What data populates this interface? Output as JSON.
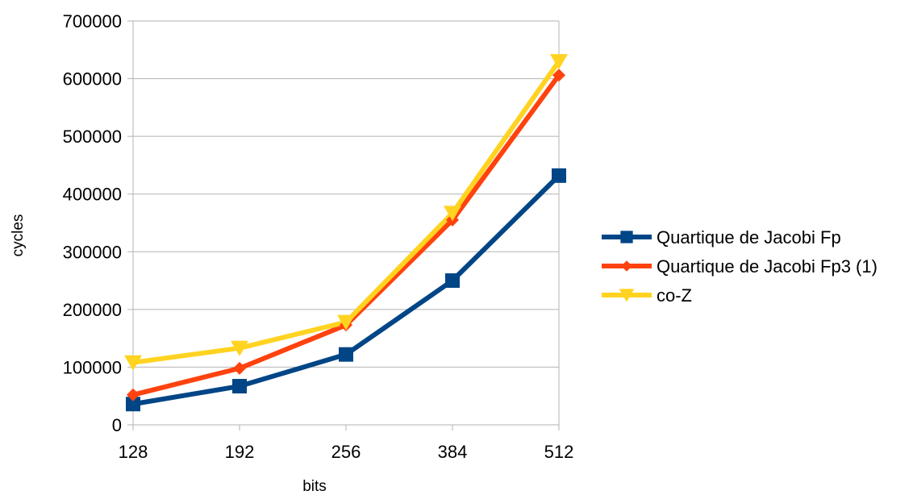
{
  "chart_data": {
    "type": "line",
    "title": "",
    "xlabel": "bits",
    "ylabel": "cycles",
    "categories": [
      "128",
      "192",
      "256",
      "384",
      "512"
    ],
    "ylim": [
      0,
      700000
    ],
    "yticks": [
      0,
      100000,
      200000,
      300000,
      400000,
      500000,
      600000,
      700000
    ],
    "ytick_labels": [
      "0",
      "100000",
      "200000",
      "300000",
      "400000",
      "500000",
      "600000",
      "700000"
    ],
    "grid": "horizontal",
    "legend_position": "right",
    "series": [
      {
        "name": "Quartique de Jacobi Fp",
        "values": [
          36000,
          67000,
          122000,
          250000,
          432000
        ],
        "color": "#004586",
        "marker": "square"
      },
      {
        "name": "Quartique de Jacobi Fp3 (1)",
        "values": [
          52000,
          98000,
          173000,
          355000,
          606000
        ],
        "color": "#ff420e",
        "marker": "diamond"
      },
      {
        "name": "co-Z",
        "values": [
          108000,
          133000,
          178000,
          367000,
          630000
        ],
        "color": "#ffd320",
        "marker": "triangle-down"
      }
    ]
  }
}
